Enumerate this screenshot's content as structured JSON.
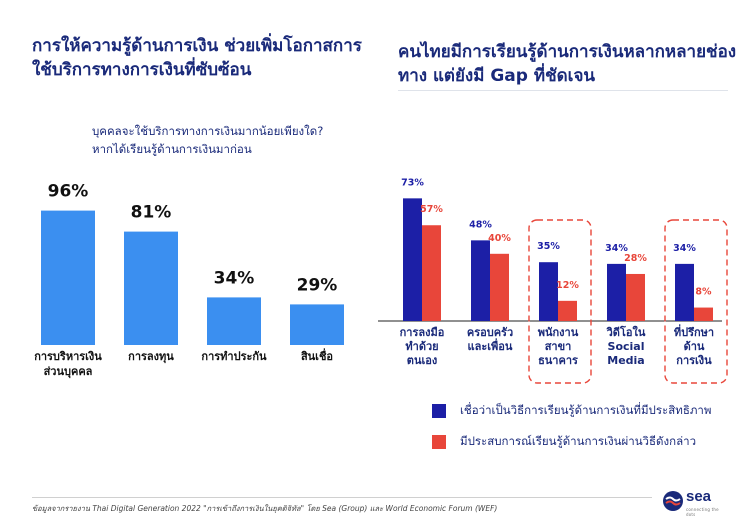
{
  "left_title": "การให้ความรู้ด้านการเงิน ช่วยเพิ่มโอกาสการใช้บริการทางการเงินที่ซับซ้อน",
  "right_title": "คนไทยมีการเรียนรู้ด้านการเงินหลากหลายช่องทาง แต่ยังมี Gap ที่ชัดเจน",
  "left_question": "บุคคลจะใช้บริการทางการเงินมากน้อยเพียงใด? หากได้เรียนรู้ด้านการเงินมาก่อน",
  "legend": [
    {
      "label": "เชื่อว่าเป็นวิธีการเรียนรู้ด้านการเงินที่มีประสิทธิภาพ",
      "color": "#1c1fa6"
    },
    {
      "label": "มีประสบการณ์เรียนรู้ด้านการเงินผ่านวิธีดังกล่าว",
      "color": "#e8463a"
    }
  ],
  "footer_note": "ข้อมูลจากรายงาน Thai Digital Generation 2022 \"การเข้าถึงการเงินในยุคดิจิทัล\" โดย Sea (Group) และ World Economic Forum (WEF)",
  "logo": {
    "text": "sea",
    "sub": "connecting the dots"
  },
  "chart_data": [
    {
      "type": "bar",
      "categories": [
        [
          "การบริหารเงิน",
          "ส่วนบุคคล"
        ],
        [
          "การลงทุน"
        ],
        [
          "การทำประกัน"
        ],
        [
          "สินเชื่อ"
        ]
      ],
      "values": [
        96,
        81,
        34,
        29
      ],
      "labels": [
        "96%",
        "81%",
        "34%",
        "29%"
      ],
      "color": "#3b8ff0",
      "ylim": [
        0,
        100
      ]
    },
    {
      "type": "bar",
      "categories": [
        [
          "การลงมือ",
          "ทำด้วย",
          "ตนเอง"
        ],
        [
          "ครอบครัว",
          "และเพื่อน"
        ],
        [
          "พนักงาน",
          "สาขา",
          "ธนาคาร"
        ],
        [
          "วิดีโอใน",
          "Social",
          "Media"
        ],
        [
          "ที่ปรึกษา",
          "ด้าน",
          "การเงิน"
        ]
      ],
      "series": [
        {
          "values": [
            73,
            48,
            35,
            34,
            34
          ],
          "labels": [
            "73%",
            "48%",
            "35%",
            "34%",
            "34%"
          ],
          "color": "#1c1fa6"
        },
        {
          "values": [
            57,
            40,
            12,
            28,
            8
          ],
          "labels": [
            "57%",
            "40%",
            "12%",
            "28%",
            "8%"
          ],
          "color": "#e8463a"
        }
      ],
      "highlighted": [
        false,
        false,
        true,
        false,
        true
      ],
      "ylim": [
        0,
        100
      ]
    }
  ]
}
